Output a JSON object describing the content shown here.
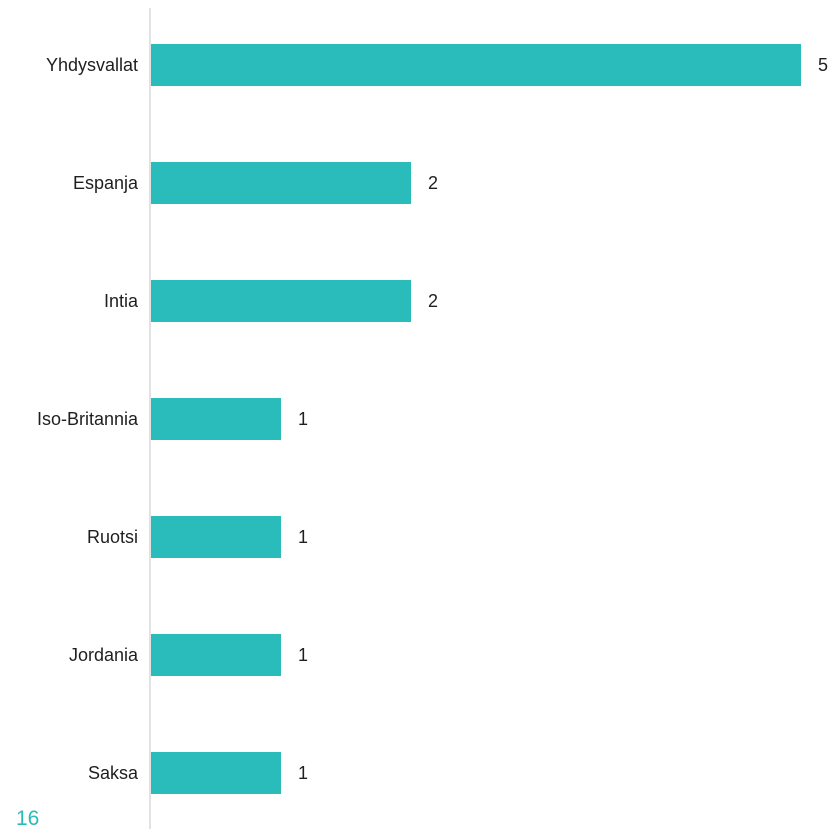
{
  "page_number": "16",
  "colors": {
    "bar": "#29bcbb",
    "axis": "#d9d9d9",
    "text": "#1f1f1f",
    "page_number": "#2bbcba"
  },
  "chart_data": {
    "type": "bar",
    "orientation": "horizontal",
    "categories": [
      "Yhdysvallat",
      "Espanja",
      "Intia",
      "Iso-Britannia",
      "Ruotsi",
      "Jordania",
      "Saksa"
    ],
    "values": [
      5,
      2,
      2,
      1,
      1,
      1,
      1
    ],
    "value_labels": [
      "5",
      "2",
      "2",
      "1",
      "1",
      "1",
      "1"
    ],
    "title": "",
    "xlabel": "",
    "ylabel": "",
    "xlim": [
      0,
      5
    ],
    "grid": false,
    "legend": "none"
  }
}
